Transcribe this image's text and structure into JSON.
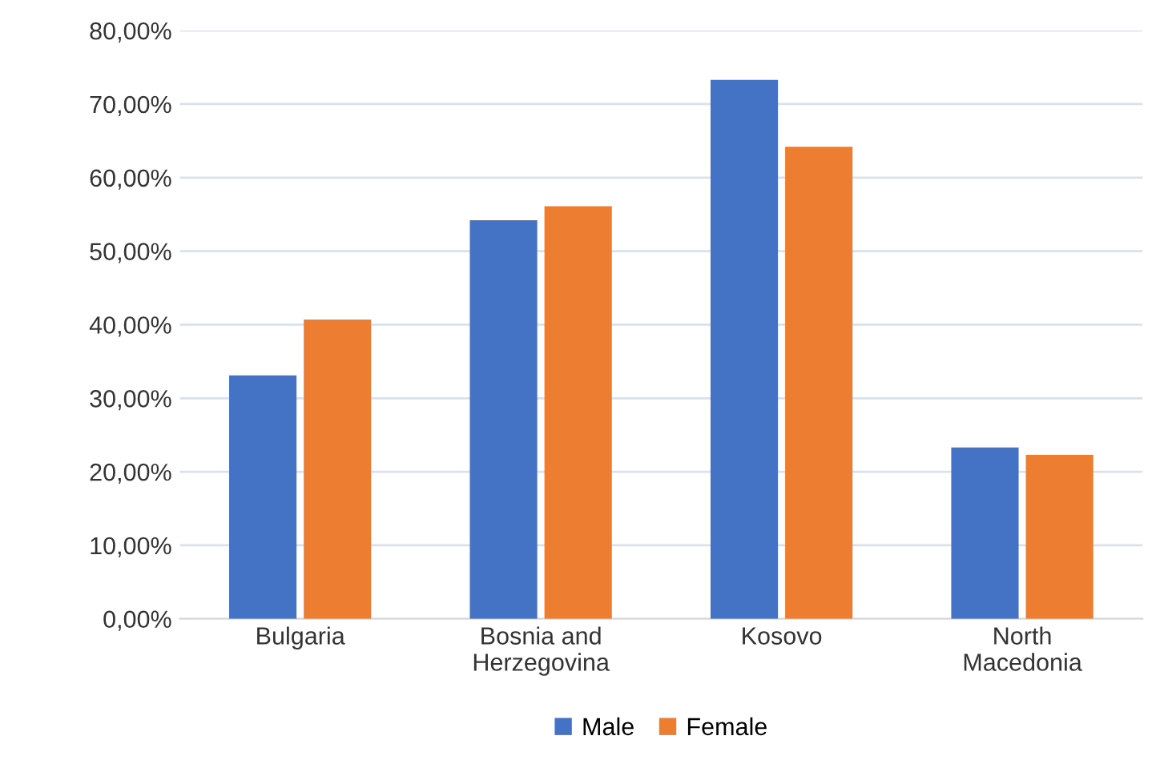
{
  "chart_data": {
    "type": "bar",
    "categories": [
      "Bulgaria",
      "Bosnia and\nHerzegovina",
      "Kosovo",
      "North\nMacedonia"
    ],
    "series": [
      {
        "name": "Male",
        "color": "#4472c4",
        "values": [
          33.1,
          54.2,
          73.3,
          23.3
        ]
      },
      {
        "name": "Female",
        "color": "#ed7d31",
        "values": [
          40.7,
          56.1,
          64.2,
          22.3
        ]
      }
    ],
    "ylim": [
      0,
      80
    ],
    "yticks": [
      {
        "value": 0,
        "label": "0,00%"
      },
      {
        "value": 10,
        "label": "10,00%"
      },
      {
        "value": 20,
        "label": "20,00%"
      },
      {
        "value": 30,
        "label": "30,00%"
      },
      {
        "value": 40,
        "label": "40,00%"
      },
      {
        "value": 50,
        "label": "50,00%"
      },
      {
        "value": 60,
        "label": "60,00%"
      },
      {
        "value": 70,
        "label": "70,00%"
      },
      {
        "value": 80,
        "label": "80,00%"
      }
    ],
    "grid": "y",
    "legend": "bottom"
  }
}
